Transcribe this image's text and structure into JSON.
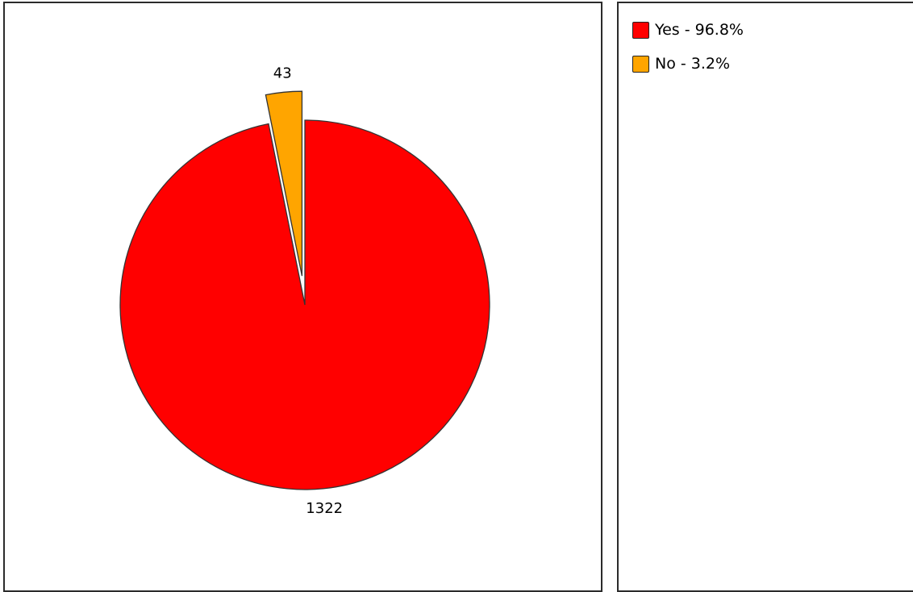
{
  "chart_data": {
    "type": "pie",
    "title": "",
    "slices": [
      {
        "label": "Yes",
        "value": 1322,
        "percent_label": "96.8%",
        "color": "#ff0000",
        "value_label": "1322",
        "exploded": false
      },
      {
        "label": "No",
        "value": 43,
        "percent_label": "3.2%",
        "color": "#ffa500",
        "value_label": "43",
        "exploded": true
      }
    ],
    "legend": {
      "placement": "right",
      "items": [
        {
          "text": "Yes - 96.8%",
          "color": "#ff0000"
        },
        {
          "text": "No - 3.2%",
          "color": "#ffa500"
        }
      ]
    },
    "start_angle": "12 o'clock, clockwise"
  }
}
